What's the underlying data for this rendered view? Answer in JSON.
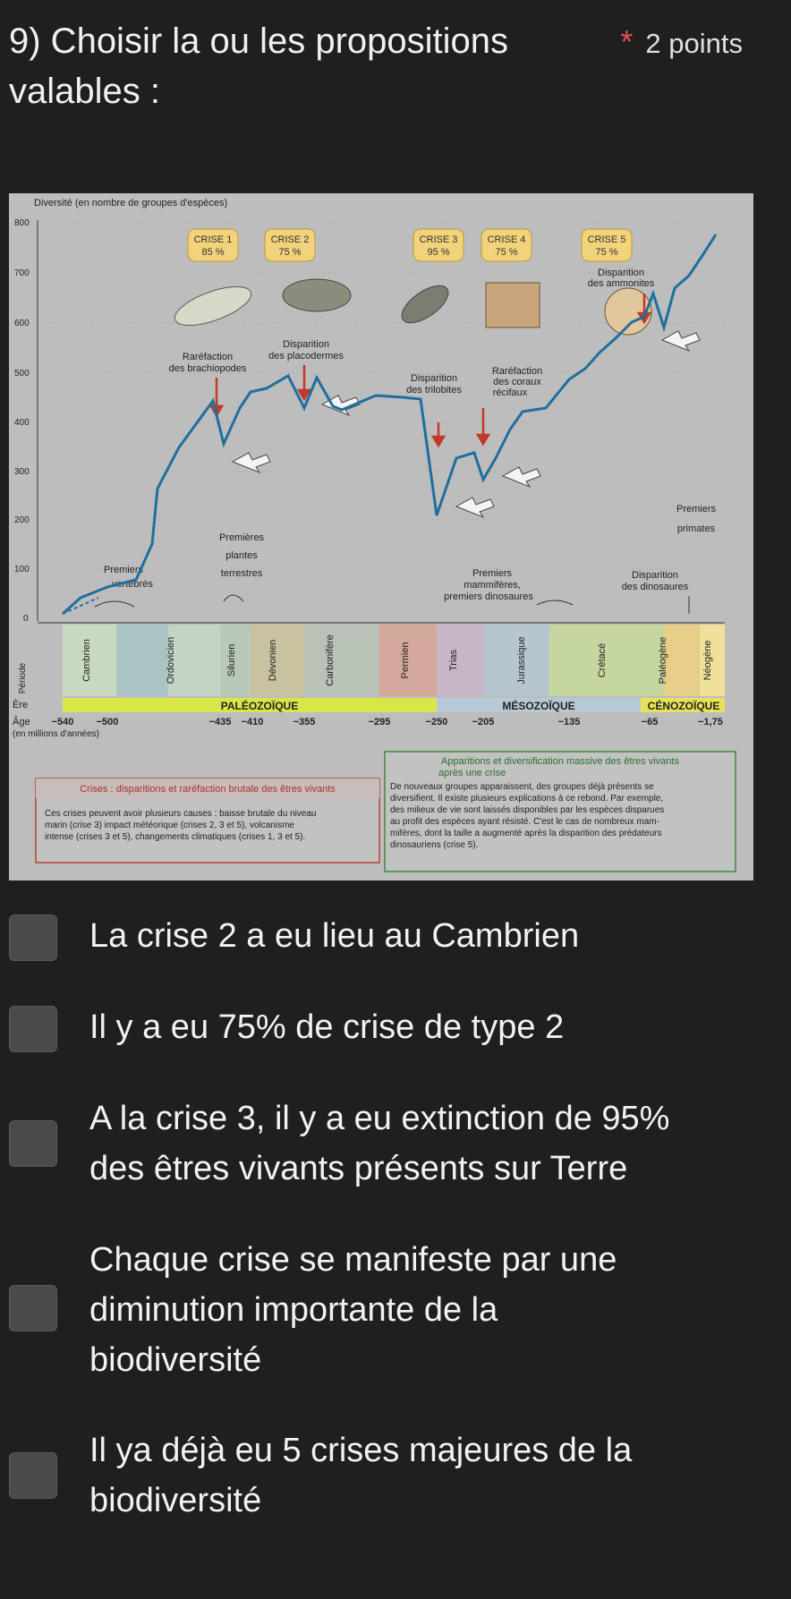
{
  "question": {
    "title_line1": "9) Choisir la ou les propositions",
    "title_line2": "valables :",
    "required_mark": "*",
    "points": "2 points"
  },
  "figure": {
    "y_axis_title": "Diversité (en nombre de groupes d'espèces)",
    "y_ticks": [
      "800",
      "700",
      "600",
      "500",
      "400",
      "300",
      "200",
      "100",
      "0"
    ],
    "crises": [
      {
        "label": "CRISE 1",
        "pct": "85 %"
      },
      {
        "label": "CRISE 2",
        "pct": "75 %"
      },
      {
        "label": "CRISE 3",
        "pct": "95 %"
      },
      {
        "label": "CRISE 4",
        "pct": "75 %"
      },
      {
        "label": "CRISE 5",
        "pct": "75 %"
      }
    ],
    "annotations": {
      "brachiopodes_1": "Raréfaction",
      "brachiopodes_2": "des brachiopodes",
      "placodermes_1": "Disparition",
      "placodermes_2": "des placodermes",
      "trilobites_1": "Disparition",
      "trilobites_2": "des trilobites",
      "coraux_1": "Raréfaction",
      "coraux_2": "des coraux",
      "coraux_3": "récifaux",
      "ammonites_1": "Disparition",
      "ammonites_2": "des ammonites",
      "primates_1": "Premiers",
      "primates_2": "primates",
      "plantes_1": "Premières",
      "plantes_2": "plantes",
      "plantes_3": "terrestres",
      "vertebres_1": "Premiers",
      "vertebres_2": "vertébrés",
      "mammiferes_1": "Premiers",
      "mammiferes_2": "mammifères,",
      "mammiferes_3": "premiers dinosaures",
      "dinosaures_1": "Disparition",
      "dinosaures_2": "des dinosaures"
    },
    "period_label": "Période",
    "periods": [
      "Cambrien",
      "Ordovicien",
      "Silurien",
      "Dévonien",
      "Carbonifère",
      "Permien",
      "Trias",
      "Jurassique",
      "Crétacé",
      "Paléogène",
      "Néogène"
    ],
    "era_label": "Ère",
    "eras": [
      "PALÉOZOÏQUE",
      "MÉSOZOÏQUE",
      "CÉNOZOÏQUE"
    ],
    "age_label": "Âge",
    "age_unit": "(en millions d'années)",
    "ages": [
      "−540",
      "−500",
      "−435",
      "−410",
      "−355",
      "−295",
      "−250",
      "−205",
      "−135",
      "−65",
      "−1,75"
    ],
    "legend_red_title": "Crises : disparitions et raréfaction brutale des êtres vivants",
    "legend_red_text_1": "Ces crises peuvent avoir plusieurs causes : baisse brutale du niveau",
    "legend_red_text_2": "marin (crise 3) impact météorique (crises 2, 3 et 5), volcanisme",
    "legend_red_text_3": "intense (crises 3 et 5), changements climatiques (crises 1, 3 et 5).",
    "legend_green_title_1": "Apparitions et diversification massive des êtres vivants",
    "legend_green_title_2": "après une crise",
    "legend_green_text_1": "De nouveaux groupes apparaissent, des groupes déjà présents se",
    "legend_green_text_2": "diversifient. Il existe plusieurs explications à ce rebond. Par exemple,",
    "legend_green_text_3": "des milieux de vie sont laissés disponibles par les espèces disparues",
    "legend_green_text_4": "au profit des espèces ayant résisté. C'est le cas de nombreux mam-",
    "legend_green_text_5": "mifères, dont la taille a augmenté après la disparition des prédateurs",
    "legend_green_text_6": "dinosauriens (crise 5).",
    "colors": {
      "curve": "#1f6f9e",
      "crise_box": "#f2d27a",
      "arrow_red": "#c0392b",
      "era_band": "#d9e64a"
    }
  },
  "options": [
    {
      "lines": [
        "La crise 2 a eu lieu au Cambrien"
      ]
    },
    {
      "lines": [
        "Il y a eu 75% de crise de type 2"
      ]
    },
    {
      "lines": [
        "A la crise 3, il y a eu extinction de 95%",
        "des êtres vivants présents sur Terre"
      ]
    },
    {
      "lines": [
        "Chaque crise se manifeste par une",
        "diminution importante de la",
        "biodiversité"
      ]
    },
    {
      "lines": [
        "Il ya déjà eu 5 crises majeures de la",
        "biodiversité"
      ]
    }
  ]
}
